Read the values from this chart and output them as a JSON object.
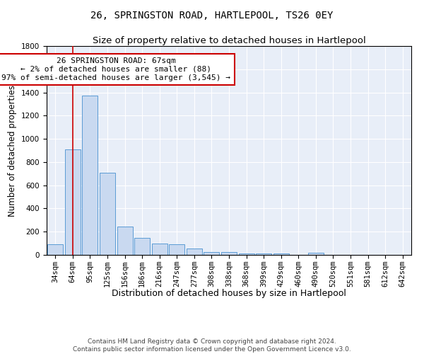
{
  "title": "26, SPRINGSTON ROAD, HARTLEPOOL, TS26 0EY",
  "subtitle": "Size of property relative to detached houses in Hartlepool",
  "xlabel": "Distribution of detached houses by size in Hartlepool",
  "ylabel": "Number of detached properties",
  "bar_color": "#c9d9f0",
  "bar_edge_color": "#5b9bd5",
  "background_color": "#e8eef8",
  "grid_color": "#ffffff",
  "categories": [
    "34sqm",
    "64sqm",
    "95sqm",
    "125sqm",
    "156sqm",
    "186sqm",
    "216sqm",
    "247sqm",
    "277sqm",
    "308sqm",
    "338sqm",
    "368sqm",
    "399sqm",
    "429sqm",
    "460sqm",
    "490sqm",
    "520sqm",
    "551sqm",
    "581sqm",
    "612sqm",
    "642sqm"
  ],
  "values": [
    90,
    910,
    1370,
    710,
    245,
    145,
    95,
    90,
    55,
    25,
    25,
    15,
    15,
    15,
    0,
    20,
    0,
    0,
    0,
    0,
    0
  ],
  "ylim": [
    0,
    1800
  ],
  "yticks": [
    0,
    200,
    400,
    600,
    800,
    1000,
    1200,
    1400,
    1600,
    1800
  ],
  "vline_x": 1.0,
  "vline_color": "#cc0000",
  "annotation_text": "26 SPRINGSTON ROAD: 67sqm\n← 2% of detached houses are smaller (88)\n97% of semi-detached houses are larger (3,545) →",
  "annotation_box_color": "#ffffff",
  "annotation_box_edge": "#cc0000",
  "footer_text": "Contains HM Land Registry data © Crown copyright and database right 2024.\nContains public sector information licensed under the Open Government Licence v3.0.",
  "title_fontsize": 10,
  "subtitle_fontsize": 9.5,
  "ylabel_fontsize": 8.5,
  "xlabel_fontsize": 9,
  "tick_fontsize": 7.5,
  "annotation_fontsize": 8,
  "footer_fontsize": 6.5
}
